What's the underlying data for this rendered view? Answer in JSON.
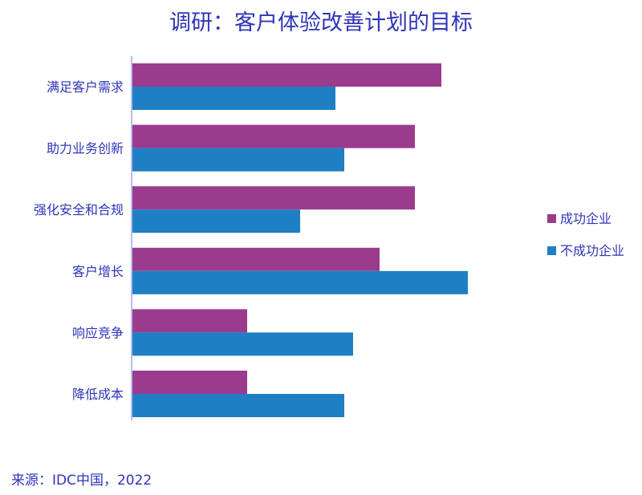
{
  "chart_data": {
    "type": "bar",
    "orientation": "horizontal",
    "title": "调研：客户体验改善计划的目标",
    "categories": [
      "满足客户需求",
      "助力业务创新",
      "强化安全和合规",
      "客户增长",
      "响应竞争",
      "降低成本"
    ],
    "series": [
      {
        "name": "成功企业",
        "color": "#9b3b8e",
        "values": [
          35,
          32,
          32,
          28,
          13,
          13
        ]
      },
      {
        "name": "不成功企业",
        "color": "#1f7fc4",
        "values": [
          23,
          24,
          19,
          38,
          25,
          24
        ]
      }
    ],
    "xlim": [
      0,
      40
    ],
    "grid": false,
    "legend": "right",
    "axis_color": "#b8bde8",
    "label_color": "#2f35b8"
  },
  "source": "来源：IDC中国，2022"
}
